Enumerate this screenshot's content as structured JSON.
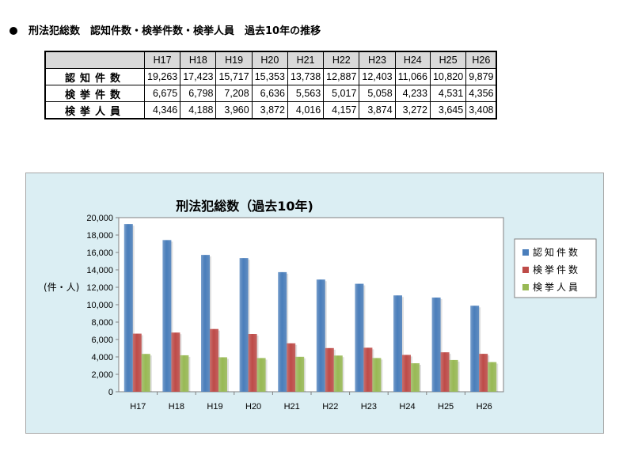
{
  "heading": "刑法犯総数　認知件数・検挙件数・検挙人員　過去10年の推移",
  "table": {
    "columns": [
      "H17",
      "H18",
      "H19",
      "H20",
      "H21",
      "H22",
      "H23",
      "H24",
      "H25",
      "H26"
    ],
    "rows": [
      {
        "label": "認知件数",
        "values": [
          "19,263",
          "17,423",
          "15,717",
          "15,353",
          "13,738",
          "12,887",
          "12,403",
          "11,066",
          "10,820",
          "9,879"
        ]
      },
      {
        "label": "検挙件数",
        "values": [
          "6,675",
          "6,798",
          "7,208",
          "6,636",
          "5,563",
          "5,017",
          "5,058",
          "4,233",
          "4,531",
          "4,356"
        ]
      },
      {
        "label": "検挙人員",
        "values": [
          "4,346",
          "4,188",
          "3,960",
          "3,872",
          "4,016",
          "4,157",
          "3,874",
          "3,272",
          "3,645",
          "3,408"
        ]
      }
    ]
  },
  "chart_data": {
    "type": "bar",
    "title": "刑法犯総数（過去10年)",
    "ylabel": "(件・人)",
    "xlabel": "",
    "categories": [
      "H17",
      "H18",
      "H19",
      "H20",
      "H21",
      "H22",
      "H23",
      "H24",
      "H25",
      "H26"
    ],
    "ylim": [
      0,
      20000
    ],
    "yticks": [
      "0",
      "2,000",
      "4,000",
      "6,000",
      "8,000",
      "10,000",
      "12,000",
      "14,000",
      "16,000",
      "18,000",
      "20,000"
    ],
    "legend_position": "right",
    "grid": false,
    "series": [
      {
        "name": "認知件数",
        "color": "#4a7ebb",
        "values": [
          19263,
          17423,
          15717,
          15353,
          13738,
          12887,
          12403,
          11066,
          10820,
          9879
        ]
      },
      {
        "name": "検挙件数",
        "color": "#be4b48",
        "values": [
          6675,
          6798,
          7208,
          6636,
          5563,
          5017,
          5058,
          4233,
          4531,
          4356
        ]
      },
      {
        "name": "検挙人員",
        "color": "#98b954",
        "values": [
          4346,
          4188,
          3960,
          3872,
          4016,
          4157,
          3874,
          3272,
          3645,
          3408
        ]
      }
    ]
  }
}
